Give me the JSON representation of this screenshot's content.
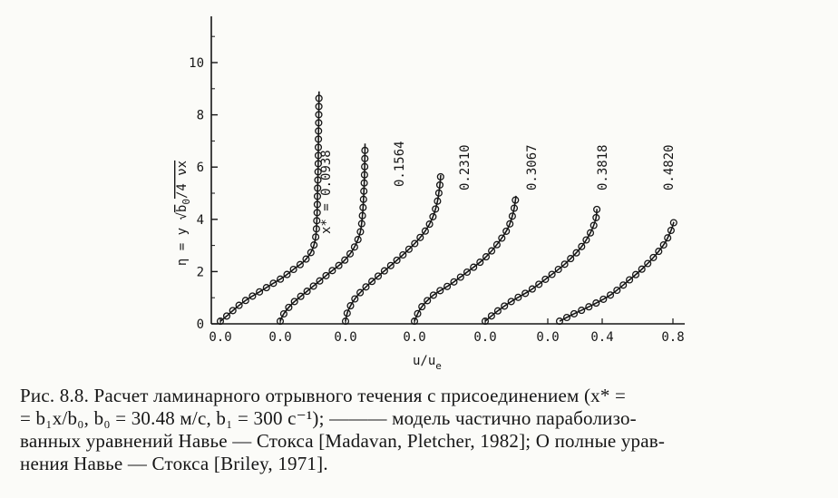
{
  "chart_data": {
    "type": "scatter",
    "y_axis": {
      "label_parts": [
        "η = y",
        "b",
        "0",
        "/4 νx"
      ],
      "ticks": [
        "0",
        "2",
        "4",
        "6",
        "8",
        "10"
      ],
      "ylim": [
        0,
        10.5
      ]
    },
    "x_axis": {
      "label_main": "u/u",
      "label_sub": "e",
      "tick_labels": [
        "0.0",
        "0.0",
        "0.0",
        "0.0",
        "0.0",
        "0.0",
        "0.4",
        "0.8"
      ],
      "xlim": [
        0,
        1
      ]
    },
    "series": [
      {
        "name": "x* = 0.0938",
        "origin_label_index": 0,
        "points": [
          [
            0.0,
            0.1
          ],
          [
            0.05,
            0.3
          ],
          [
            0.12,
            0.6
          ],
          [
            0.2,
            0.9
          ],
          [
            0.3,
            1.2
          ],
          [
            0.4,
            1.5
          ],
          [
            0.5,
            1.8
          ],
          [
            0.58,
            2.1
          ],
          [
            0.66,
            2.4
          ],
          [
            0.72,
            2.8
          ],
          [
            0.75,
            3.3
          ],
          [
            0.76,
            4.0
          ],
          [
            0.765,
            5.0
          ],
          [
            0.77,
            6.0
          ],
          [
            0.772,
            7.0
          ],
          [
            0.775,
            8.0
          ],
          [
            0.777,
            8.9
          ]
        ]
      },
      {
        "name": "0.1564",
        "origin_label_index": 1,
        "points": [
          [
            0.0,
            0.1
          ],
          [
            0.03,
            0.4
          ],
          [
            0.1,
            0.8
          ],
          [
            0.2,
            1.2
          ],
          [
            0.3,
            1.6
          ],
          [
            0.4,
            2.0
          ],
          [
            0.5,
            2.4
          ],
          [
            0.58,
            2.9
          ],
          [
            0.63,
            3.5
          ],
          [
            0.65,
            4.3
          ],
          [
            0.66,
            5.2
          ],
          [
            0.665,
            6.0
          ],
          [
            0.668,
            6.9
          ]
        ]
      },
      {
        "name": "0.2310",
        "origin_label_index": 2,
        "points": [
          [
            0.0,
            0.1
          ],
          [
            0.02,
            0.5
          ],
          [
            0.08,
            1.0
          ],
          [
            0.18,
            1.5
          ],
          [
            0.3,
            2.0
          ],
          [
            0.42,
            2.5
          ],
          [
            0.53,
            3.0
          ],
          [
            0.62,
            3.5
          ],
          [
            0.68,
            4.0
          ],
          [
            0.72,
            4.6
          ],
          [
            0.74,
            5.2
          ],
          [
            0.75,
            5.7
          ]
        ]
      },
      {
        "name": "0.3067",
        "origin_label_index": 3,
        "points": [
          [
            0.0,
            0.1
          ],
          [
            0.05,
            0.6
          ],
          [
            0.15,
            1.1
          ],
          [
            0.28,
            1.5
          ],
          [
            0.42,
            2.0
          ],
          [
            0.55,
            2.5
          ],
          [
            0.66,
            3.1
          ],
          [
            0.74,
            3.7
          ],
          [
            0.78,
            4.3
          ],
          [
            0.8,
            4.9
          ]
        ]
      },
      {
        "name": "0.3818",
        "origin_label_index": 4,
        "points": [
          [
            0.0,
            0.1
          ],
          [
            0.1,
            0.5
          ],
          [
            0.22,
            0.9
          ],
          [
            0.36,
            1.3
          ],
          [
            0.5,
            1.8
          ],
          [
            0.63,
            2.3
          ],
          [
            0.75,
            2.9
          ],
          [
            0.83,
            3.5
          ],
          [
            0.87,
            4.0
          ],
          [
            0.88,
            4.4
          ]
        ]
      },
      {
        "name": "0.4820",
        "origin_label_index": 5,
        "points": [
          [
            0.05,
            0.1
          ],
          [
            0.15,
            0.35
          ],
          [
            0.3,
            0.7
          ],
          [
            0.45,
            1.1
          ],
          [
            0.58,
            1.6
          ],
          [
            0.7,
            2.1
          ],
          [
            0.8,
            2.6
          ],
          [
            0.88,
            3.1
          ],
          [
            0.93,
            3.6
          ],
          [
            0.95,
            3.9
          ]
        ]
      }
    ]
  },
  "caption": {
    "line1": "Рис. 8.8. Расчет ламинарного отрывного течения с присоединением (x* =",
    "line2": "= b₁x/b₀, b₀ = 30.48 м/с, b₁ = 300 с⁻¹); ——— модель частично параболизо-",
    "line3": "ванных уравнений Навье — Стокса [Madavan, Pletcher, 1982]; О полные урав-",
    "line4": "нения Навье — Стокса [Briley, 1971]."
  }
}
